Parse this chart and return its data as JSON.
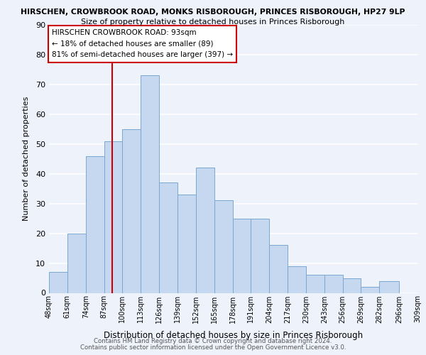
{
  "title_top": "HIRSCHEN, CROWBROOK ROAD, MONKS RISBOROUGH, PRINCES RISBOROUGH, HP27 9LP",
  "title_sub": "Size of property relative to detached houses in Princes Risborough",
  "xlabel": "Distribution of detached houses by size in Princes Risborough",
  "ylabel": "Number of detached properties",
  "bar_edges": [
    48,
    61,
    74,
    87,
    100,
    113,
    126,
    139,
    152,
    165,
    178,
    191,
    204,
    217,
    230,
    243,
    256,
    269,
    282,
    296,
    309
  ],
  "bar_heights": [
    7,
    20,
    46,
    51,
    55,
    73,
    37,
    33,
    42,
    31,
    25,
    25,
    16,
    9,
    6,
    6,
    5,
    2,
    4,
    0
  ],
  "bar_color": "#c5d8f0",
  "bar_edge_color": "#7ba7d0",
  "tick_labels": [
    "48sqm",
    "61sqm",
    "74sqm",
    "87sqm",
    "100sqm",
    "113sqm",
    "126sqm",
    "139sqm",
    "152sqm",
    "165sqm",
    "178sqm",
    "191sqm",
    "204sqm",
    "217sqm",
    "230sqm",
    "243sqm",
    "256sqm",
    "269sqm",
    "282sqm",
    "296sqm",
    "309sqm"
  ],
  "vline_x": 93,
  "vline_color": "#cc0000",
  "ylim": [
    0,
    90
  ],
  "yticks": [
    0,
    10,
    20,
    30,
    40,
    50,
    60,
    70,
    80,
    90
  ],
  "annotation_title": "HIRSCHEN CROWBROOK ROAD: 93sqm",
  "annotation_line1": "← 18% of detached houses are smaller (89)",
  "annotation_line2": "81% of semi-detached houses are larger (397) →",
  "annotation_box_color": "#ffffff",
  "annotation_box_edge": "#cc0000",
  "background_color": "#eef2fb",
  "grid_color": "#ffffff",
  "footer1": "Contains HM Land Registry data © Crown copyright and database right 2024.",
  "footer2": "Contains public sector information licensed under the Open Government Licence v3.0."
}
